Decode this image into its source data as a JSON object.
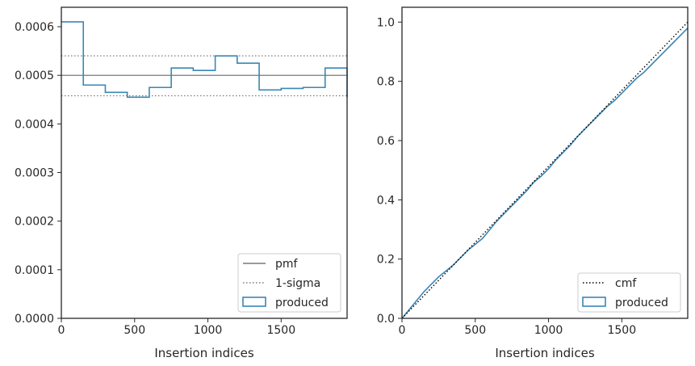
{
  "chart_data": [
    {
      "type": "step",
      "xlabel": "Insertion indices",
      "ylabel": "",
      "xlim": [
        0,
        1950
      ],
      "ylim": [
        0,
        0.00064
      ],
      "xticks": [
        0,
        500,
        1000,
        1500
      ],
      "xtick_labels": [
        "0",
        "500",
        "1000",
        "1500"
      ],
      "yticks": [
        0,
        0.0001,
        0.0002,
        0.0003,
        0.0004,
        0.0005,
        0.0006
      ],
      "ytick_labels": [
        "0.0000",
        "0.0001",
        "0.0002",
        "0.0003",
        "0.0004",
        "0.0005",
        "0.0006"
      ],
      "grid": false,
      "legend_position": "lower right",
      "series": [
        {
          "name": "produced",
          "color": "#3a87b5",
          "bin_edges": [
            0,
            150,
            300,
            450,
            600,
            750,
            900,
            1050,
            1200,
            1350,
            1500,
            1650,
            1800,
            1950
          ],
          "values": [
            0.00061,
            0.00048,
            0.000465,
            0.000455,
            0.000475,
            0.000515,
            0.00051,
            0.00054,
            0.000525,
            0.00047,
            0.000473,
            0.000475,
            0.000515,
            0.000455
          ]
        }
      ],
      "reference_lines": [
        {
          "name": "pmf",
          "value": 0.0005,
          "style": "solid",
          "color": "#7a7a7a"
        },
        {
          "name": "1-sigma",
          "values": [
            0.00054,
            0.000458
          ],
          "style": "dotted",
          "color": "#7a7a7a"
        }
      ],
      "legend": [
        {
          "label": "pmf",
          "kind": "solid-line",
          "color": "#7a7a7a"
        },
        {
          "label": "1-sigma",
          "kind": "dotted-line",
          "color": "#7a7a7a"
        },
        {
          "label": "produced",
          "kind": "box",
          "color": "#3a87b5"
        }
      ]
    },
    {
      "type": "line",
      "xlabel": "Insertion indices",
      "ylabel": "",
      "xlim": [
        0,
        1950
      ],
      "ylim": [
        0,
        1.05
      ],
      "xticks": [
        0,
        500,
        1000,
        1500
      ],
      "xtick_labels": [
        "0",
        "500",
        "1000",
        "1500"
      ],
      "yticks": [
        0,
        0.2,
        0.4,
        0.6,
        0.8,
        1.0
      ],
      "ytick_labels": [
        "0.0",
        "0.2",
        "0.4",
        "0.6",
        "0.8",
        "1.0"
      ],
      "grid": false,
      "legend_position": "lower right",
      "series": [
        {
          "name": "produced",
          "color": "#3a87b5",
          "x": [
            0,
            50,
            100,
            150,
            200,
            250,
            300,
            350,
            400,
            450,
            500,
            550,
            600,
            650,
            700,
            750,
            800,
            850,
            900,
            950,
            1000,
            1050,
            1100,
            1150,
            1200,
            1250,
            1300,
            1350,
            1400,
            1450,
            1500,
            1550,
            1600,
            1650,
            1700,
            1750,
            1800,
            1850,
            1900,
            1950
          ],
          "y": [
            0,
            0.03,
            0.06,
            0.09,
            0.115,
            0.14,
            0.16,
            0.18,
            0.205,
            0.23,
            0.25,
            0.27,
            0.3,
            0.33,
            0.355,
            0.38,
            0.405,
            0.43,
            0.46,
            0.48,
            0.505,
            0.535,
            0.56,
            0.585,
            0.615,
            0.64,
            0.665,
            0.69,
            0.715,
            0.735,
            0.76,
            0.785,
            0.81,
            0.83,
            0.855,
            0.88,
            0.905,
            0.93,
            0.955,
            0.98
          ]
        },
        {
          "name": "cmf",
          "color": "#000000",
          "style": "dotted",
          "x": [
            0,
            1950
          ],
          "y": [
            0,
            1.0
          ]
        }
      ],
      "legend": [
        {
          "label": "cmf",
          "kind": "dotted-line",
          "color": "#000000"
        },
        {
          "label": "produced",
          "kind": "box",
          "color": "#3a87b5"
        }
      ]
    }
  ]
}
